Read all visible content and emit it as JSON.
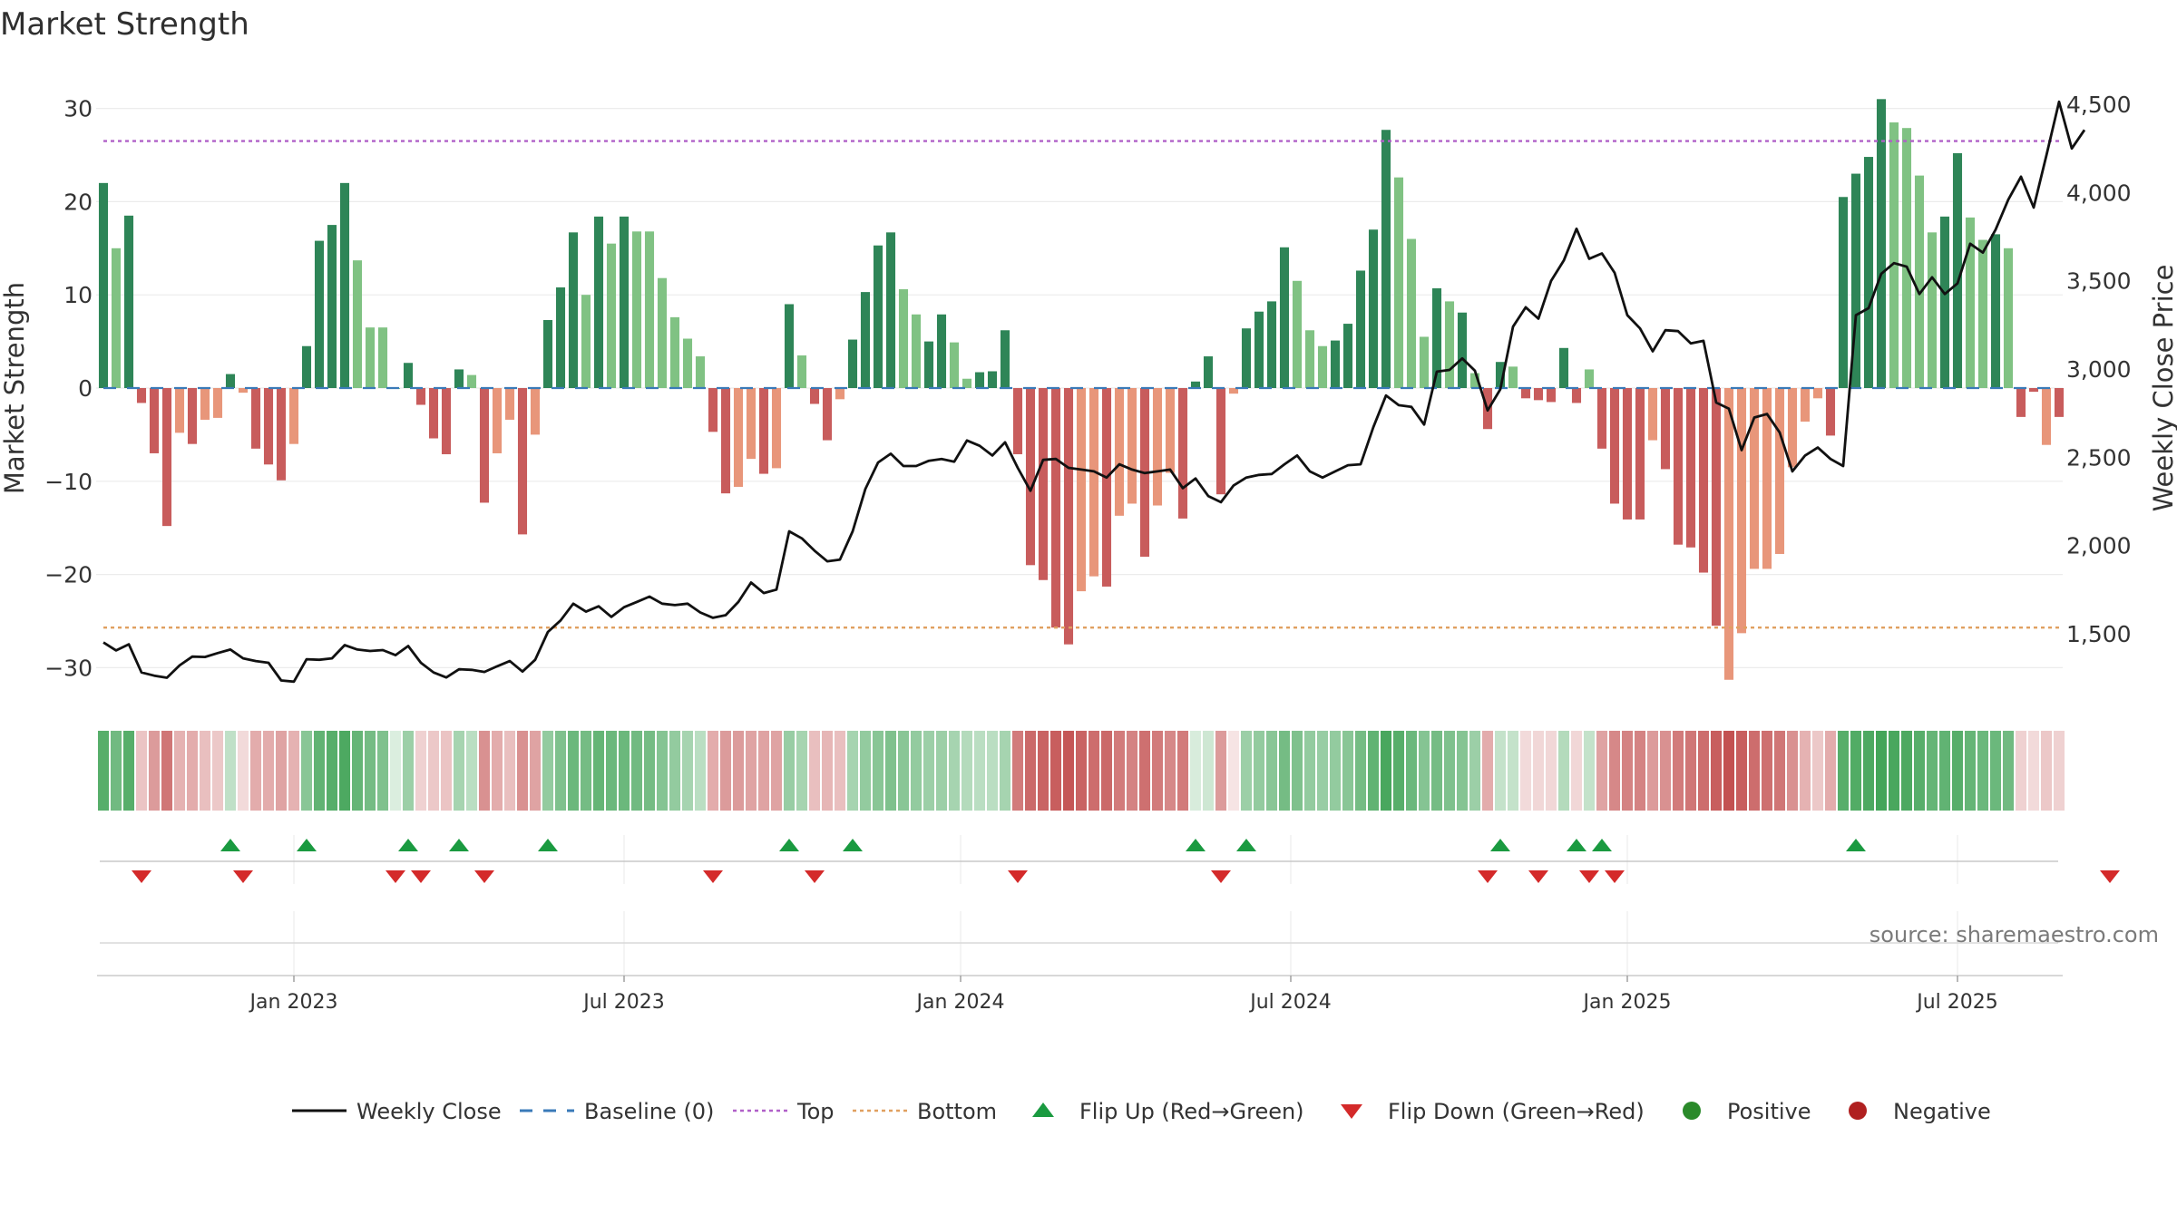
{
  "title": "Market Strength",
  "source": "source: sharemaestro.com",
  "colors": {
    "pos_dark": "#2e8557",
    "pos_light": "#80c283",
    "neg_dark": "#c85c5c",
    "neg_light": "#e8967a",
    "top_line": "#b060c8",
    "bottom_line": "#e0a060",
    "baseline": "#3a7ab8",
    "price_line": "#111111",
    "flip_up": "#1a9a40",
    "flip_down": "#d42a2a",
    "positive": "#2a8a2a",
    "negative": "#b02020"
  },
  "chart_data": {
    "type": "bar",
    "title": "Market Strength",
    "ylabel": "Market Strength",
    "y2label": "Weekly Close Price",
    "ylim": [
      -33.5,
      34
    ],
    "y2lim": [
      1050,
      4600
    ],
    "yticks": [
      {
        "v": 30,
        "label": "30"
      },
      {
        "v": 20,
        "label": "20"
      },
      {
        "v": 10,
        "label": "10"
      },
      {
        "v": 0,
        "label": "0"
      },
      {
        "v": -10,
        "label": "−10"
      },
      {
        "v": -20,
        "label": "−20"
      },
      {
        "v": -30,
        "label": "−30"
      }
    ],
    "y2ticks": [
      {
        "v": 4500,
        "label": "4,500"
      },
      {
        "v": 4000,
        "label": "4,000"
      },
      {
        "v": 3500,
        "label": "3,500"
      },
      {
        "v": 3000,
        "label": "3,000"
      },
      {
        "v": 2500,
        "label": "2,500"
      },
      {
        "v": 2000,
        "label": "2,000"
      },
      {
        "v": 1500,
        "label": "1,500"
      }
    ],
    "xticks": [
      {
        "i": 15,
        "label": "Jan 2023"
      },
      {
        "i": 41,
        "label": "Jul 2023"
      },
      {
        "i": 67.5,
        "label": "Jan 2024"
      },
      {
        "i": 93.5,
        "label": "Jul 2024"
      },
      {
        "i": 120,
        "label": "Jan 2025"
      },
      {
        "i": 146,
        "label": "Jul 2025"
      }
    ],
    "top": 26.5,
    "bottom": -25.7,
    "strength": [
      22,
      15,
      18.5,
      -1.6,
      -7,
      -14.8,
      -4.8,
      -6,
      -3.4,
      -3.2,
      1.5,
      -0.5,
      -6.5,
      -8.2,
      -9.9,
      -6,
      4.5,
      15.8,
      17.5,
      22,
      13.7,
      6.5,
      6.5,
      0,
      2.7,
      -1.8,
      -5.4,
      -7.1,
      2,
      1.4,
      -12.3,
      -7,
      -3.4,
      -15.7,
      -5,
      7.3,
      10.8,
      16.7,
      10,
      18.4,
      15.5,
      18.4,
      16.8,
      16.8,
      11.8,
      7.6,
      5.3,
      3.4,
      -4.7,
      -11.3,
      -10.6,
      -7.6,
      -9.2,
      -8.6,
      9,
      3.5,
      -1.7,
      -5.6,
      -1.2,
      5.2,
      10.3,
      15.3,
      16.7,
      10.6,
      7.9,
      5,
      7.9,
      4.9,
      1,
      1.7,
      1.8,
      6.2,
      -7.1,
      -19,
      -20.6,
      -25.7,
      -27.5,
      -21.8,
      -20.2,
      -21.3,
      -13.7,
      -12.4,
      -18.1,
      -12.6,
      -9.1,
      -14,
      0.7,
      3.4,
      -11.4,
      -0.6,
      6.4,
      8.2,
      9.3,
      15.1,
      11.5,
      6.2,
      4.5,
      5.1,
      6.9,
      12.6,
      17,
      27.7,
      22.6,
      16,
      5.5,
      10.7,
      9.3,
      8.1,
      1.6,
      -4.4,
      2.8,
      2.3,
      -1.1,
      -1.3,
      -1.5,
      4.3,
      -1.6,
      2,
      -6.5,
      -12.4,
      -14.1,
      -14.1,
      -5.6,
      -8.7,
      -16.8,
      -17.1,
      -19.8,
      -25.5,
      -31.3,
      -26.3,
      -19.4,
      -19.4,
      -17.8,
      -8.5,
      -3.6,
      -1.1,
      -5.1,
      20.5,
      23,
      24.8,
      31,
      28.5,
      27.9,
      22.8,
      16.7,
      18.4,
      25.2,
      18.3,
      15.9,
      16.5,
      15,
      -3.1,
      -0.4,
      -6.1,
      -3.1
    ],
    "strength_shade": [
      "d",
      "l",
      "d",
      "d",
      "d",
      "d",
      "l",
      "d",
      "l",
      "l",
      "d",
      "l",
      "d",
      "d",
      "d",
      "l",
      "d",
      "d",
      "d",
      "d",
      "l",
      "l",
      "l",
      "l",
      "d",
      "d",
      "d",
      "d",
      "d",
      "l",
      "d",
      "l",
      "l",
      "d",
      "l",
      "d",
      "d",
      "d",
      "l",
      "d",
      "l",
      "d",
      "l",
      "l",
      "l",
      "l",
      "l",
      "l",
      "d",
      "d",
      "l",
      "l",
      "d",
      "l",
      "d",
      "l",
      "d",
      "d",
      "l",
      "d",
      "d",
      "d",
      "d",
      "l",
      "l",
      "d",
      "d",
      "l",
      "l",
      "d",
      "d",
      "d",
      "d",
      "d",
      "d",
      "d",
      "d",
      "l",
      "l",
      "d",
      "l",
      "l",
      "d",
      "l",
      "l",
      "d",
      "d",
      "d",
      "d",
      "l",
      "d",
      "d",
      "d",
      "d",
      "l",
      "l",
      "l",
      "d",
      "d",
      "d",
      "d",
      "d",
      "l",
      "l",
      "l",
      "d",
      "l",
      "d",
      "l",
      "d",
      "d",
      "l",
      "d",
      "d",
      "d",
      "d",
      "d",
      "l",
      "d",
      "d",
      "d",
      "d",
      "l",
      "d",
      "d",
      "d",
      "d",
      "d",
      "l",
      "l",
      "l",
      "l",
      "l",
      "l",
      "l",
      "l",
      "d",
      "d",
      "d",
      "d",
      "d",
      "l",
      "l",
      "l",
      "l",
      "d",
      "d",
      "l",
      "l",
      "d",
      "l",
      "d",
      "d",
      "l",
      "d",
      "l"
    ],
    "price": [
      1450,
      1405,
      1440,
      1280,
      1262,
      1250,
      1320,
      1370,
      1368,
      1390,
      1410,
      1360,
      1345,
      1335,
      1235,
      1228,
      1355,
      1352,
      1360,
      1435,
      1410,
      1402,
      1407,
      1378,
      1430,
      1335,
      1280,
      1252,
      1298,
      1295,
      1283,
      1315,
      1345,
      1285,
      1352,
      1510,
      1575,
      1670,
      1625,
      1655,
      1595,
      1650,
      1680,
      1710,
      1670,
      1662,
      1670,
      1620,
      1590,
      1605,
      1680,
      1790,
      1730,
      1750,
      2080,
      2040,
      1970,
      1910,
      1920,
      2080,
      2320,
      2470,
      2520,
      2450,
      2450,
      2480,
      2490,
      2475,
      2595,
      2565,
      2510,
      2585,
      2440,
      2310,
      2485,
      2490,
      2440,
      2430,
      2420,
      2385,
      2460,
      2430,
      2410,
      2420,
      2430,
      2325,
      2380,
      2280,
      2245,
      2340,
      2385,
      2400,
      2405,
      2460,
      2510,
      2420,
      2385,
      2420,
      2455,
      2460,
      2670,
      2850,
      2795,
      2785,
      2685,
      2985,
      2995,
      3060,
      2990,
      2765,
      2885,
      3240,
      3350,
      3285,
      3500,
      3615,
      3795,
      3625,
      3655,
      3545,
      3305,
      3230,
      3100,
      3220,
      3215,
      3145,
      3160,
      2810,
      2775,
      2540,
      2725,
      2745,
      2640,
      2420,
      2510,
      2555,
      2490,
      2450,
      3305,
      3345,
      3540,
      3600,
      3580,
      3425,
      3520,
      3425,
      3485,
      3710,
      3660,
      3790,
      3960,
      4090,
      3915,
      4210,
      4515,
      4250,
      4355
    ],
    "ribbon_alpha": [
      0.85,
      0.72,
      0.85,
      0.32,
      0.55,
      0.75,
      0.42,
      0.45,
      0.35,
      0.3,
      0.32,
      0.2,
      0.45,
      0.45,
      0.5,
      0.42,
      0.6,
      0.8,
      0.85,
      0.9,
      0.78,
      0.7,
      0.65,
      0.18,
      0.5,
      0.25,
      0.3,
      0.32,
      0.45,
      0.35,
      0.6,
      0.45,
      0.35,
      0.6,
      0.5,
      0.55,
      0.65,
      0.75,
      0.7,
      0.78,
      0.75,
      0.75,
      0.72,
      0.7,
      0.62,
      0.55,
      0.45,
      0.35,
      0.45,
      0.55,
      0.55,
      0.5,
      0.5,
      0.5,
      0.52,
      0.45,
      0.35,
      0.4,
      0.35,
      0.45,
      0.55,
      0.6,
      0.65,
      0.6,
      0.55,
      0.5,
      0.5,
      0.45,
      0.38,
      0.35,
      0.35,
      0.45,
      0.72,
      0.82,
      0.85,
      0.88,
      0.92,
      0.85,
      0.8,
      0.82,
      0.72,
      0.68,
      0.78,
      0.72,
      0.65,
      0.72,
      0.2,
      0.25,
      0.55,
      0.15,
      0.5,
      0.55,
      0.6,
      0.7,
      0.65,
      0.55,
      0.52,
      0.55,
      0.6,
      0.7,
      0.8,
      0.92,
      0.85,
      0.75,
      0.62,
      0.7,
      0.65,
      0.62,
      0.5,
      0.45,
      0.3,
      0.3,
      0.2,
      0.22,
      0.22,
      0.38,
      0.22,
      0.3,
      0.5,
      0.65,
      0.68,
      0.68,
      0.55,
      0.6,
      0.72,
      0.75,
      0.8,
      0.88,
      0.95,
      0.88,
      0.8,
      0.78,
      0.75,
      0.6,
      0.42,
      0.3,
      0.45,
      0.85,
      0.88,
      0.9,
      0.95,
      0.92,
      0.9,
      0.85,
      0.78,
      0.8,
      0.85,
      0.78,
      0.75,
      0.75,
      0.72,
      0.25,
      0.2,
      0.3,
      0.25
    ],
    "flip_up_idx": [
      10,
      16,
      24,
      28,
      35,
      54,
      59,
      86,
      90,
      110,
      116,
      118,
      138
    ],
    "flip_down_idx": [
      3,
      11,
      23,
      25,
      30,
      48,
      56,
      72,
      88,
      109,
      113,
      117,
      119,
      158
    ],
    "legend": [
      {
        "key": "weekly_close",
        "label": "Weekly Close"
      },
      {
        "key": "baseline",
        "label": "Baseline (0)"
      },
      {
        "key": "top",
        "label": "Top"
      },
      {
        "key": "bottom",
        "label": "Bottom"
      },
      {
        "key": "flip_up",
        "label": "Flip Up (Red→Green)"
      },
      {
        "key": "flip_down",
        "label": "Flip Down (Green→Red)"
      },
      {
        "key": "positive",
        "label": "Positive"
      },
      {
        "key": "negative",
        "label": "Negative"
      }
    ]
  }
}
